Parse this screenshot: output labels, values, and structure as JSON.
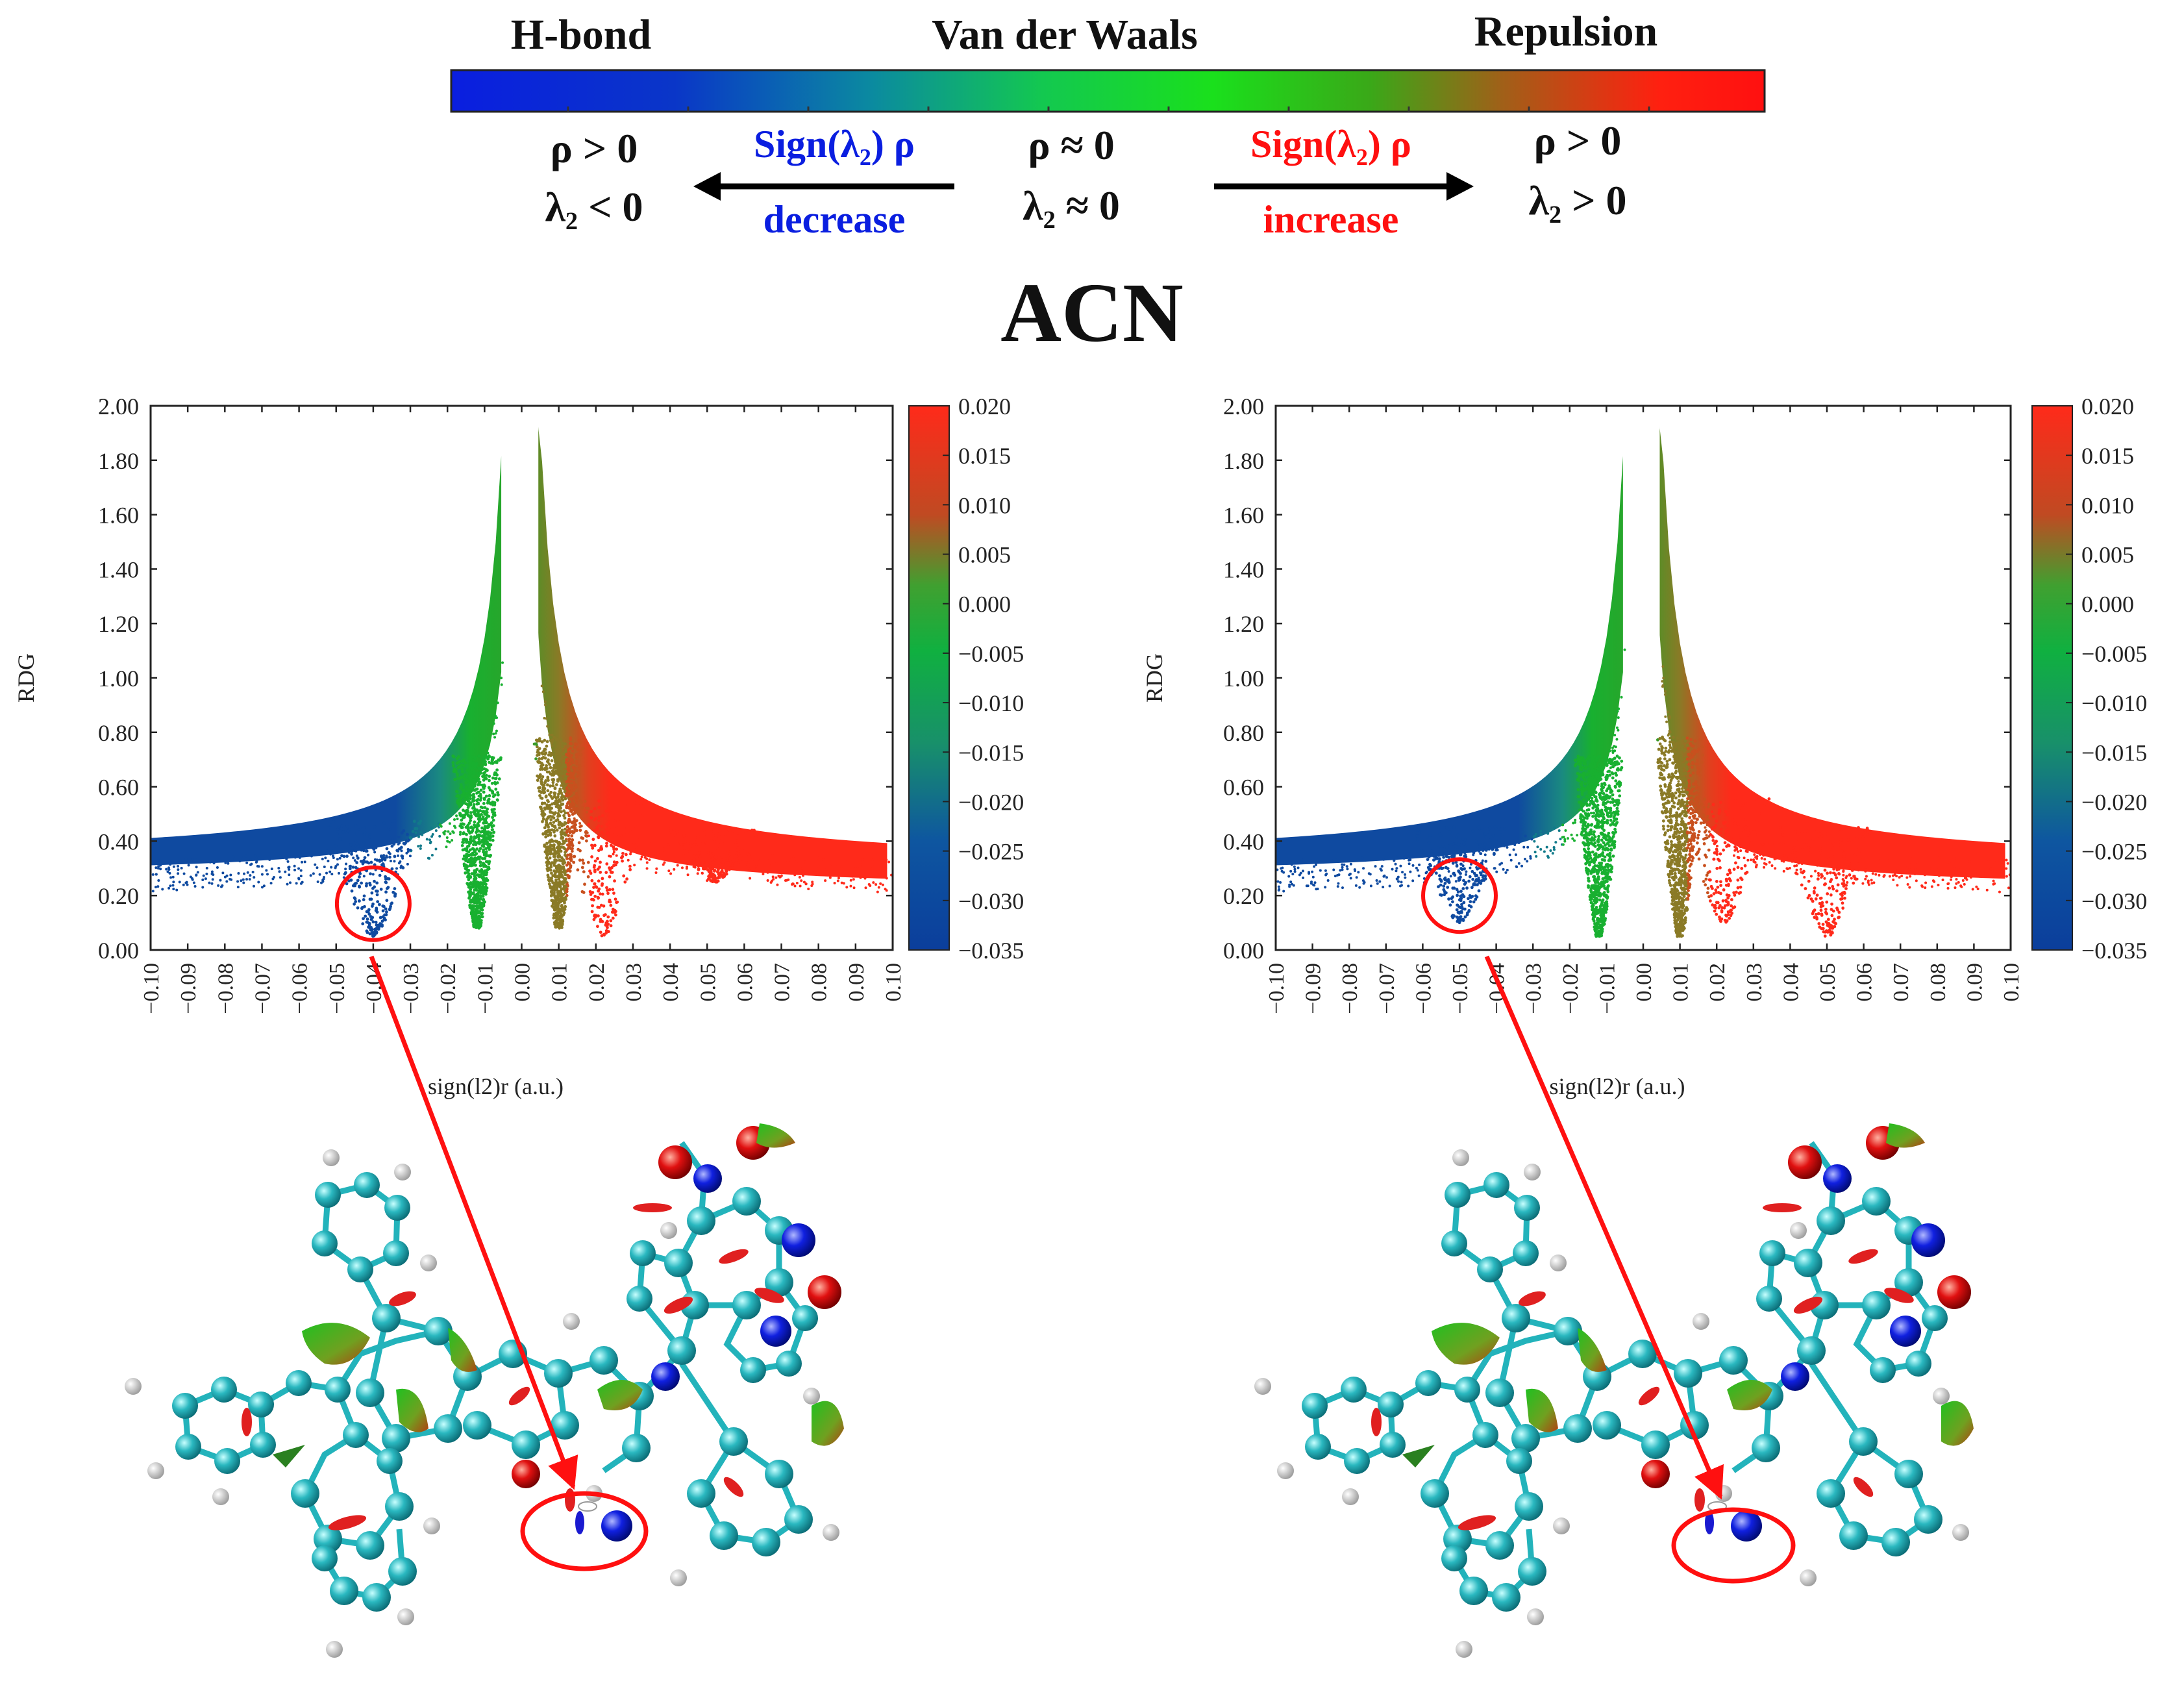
{
  "legend": {
    "labels": {
      "hbond": "H-bond",
      "vdw": "Van der Waals",
      "repulsion": "Repulsion"
    },
    "left_cond": {
      "rho": "ρ > 0",
      "lam": "λ₂ < 0"
    },
    "mid_cond": {
      "rho": "ρ ≈ 0",
      "lam": "λ₂ ≈ 0"
    },
    "right_cond": {
      "rho": "ρ > 0",
      "lam": "λ₂ > 0"
    },
    "left_arrow": {
      "line1": "Sign(λ₂) ρ",
      "line2": "decrease"
    },
    "right_arrow": {
      "line1": "Sign(λ₂) ρ",
      "line2": "increase"
    },
    "colors": {
      "blue": "#0a1ee0",
      "green": "#18d020",
      "red": "#ff1010"
    }
  },
  "main_title": "ACN",
  "chart_data": [
    {
      "type": "scatter",
      "panel": "left",
      "xlabel": "sign(l2)r (a.u.)",
      "ylabel": "RDG",
      "xlim": [
        -0.1,
        0.1
      ],
      "ylim": [
        0.0,
        2.0
      ],
      "xticks": [
        "-0.10",
        "-0.09",
        "-0.08",
        "-0.07",
        "-0.06",
        "-0.05",
        "-0.04",
        "-0.03",
        "-0.02",
        "-0.01",
        "0.00",
        "0.01",
        "0.02",
        "0.03",
        "0.04",
        "0.05",
        "0.06",
        "0.07",
        "0.08",
        "0.09",
        "0.10"
      ],
      "yticks": [
        "0.00",
        "0.20",
        "0.40",
        "0.60",
        "0.80",
        "1.00",
        "1.20",
        "1.40",
        "1.60",
        "1.80",
        "2.00"
      ],
      "colorbar": {
        "min": -0.035,
        "max": 0.02,
        "ticks": [
          "0.020",
          "0.015",
          "0.010",
          "0.005",
          "0.000",
          "-0.005",
          "-0.010",
          "-0.015",
          "-0.020",
          "-0.025",
          "-0.030",
          "-0.035"
        ]
      },
      "highlight": {
        "x": -0.04,
        "y": 0.17
      },
      "spikes": [
        {
          "name": "hbond",
          "x": -0.04,
          "min_rdg": 0.05
        },
        {
          "name": "vdw-left",
          "x": -0.012,
          "min_rdg": 0.08
        },
        {
          "name": "vdw-right",
          "x": 0.01,
          "min_rdg": 0.08
        },
        {
          "name": "steric-1",
          "x": 0.022,
          "min_rdg": 0.05
        },
        {
          "name": "steric-2",
          "x": 0.052,
          "min_rdg": 0.25
        }
      ]
    },
    {
      "type": "scatter",
      "panel": "right",
      "xlabel": "sign(l2)r (a.u.)",
      "ylabel": "RDG",
      "xlim": [
        -0.1,
        0.1
      ],
      "ylim": [
        0.0,
        2.0
      ],
      "xticks": [
        "-0.10",
        "-0.09",
        "-0.08",
        "-0.07",
        "-0.06",
        "-0.05",
        "-0.04",
        "-0.03",
        "-0.02",
        "-0.01",
        "0.00",
        "0.01",
        "0.02",
        "0.03",
        "0.04",
        "0.05",
        "0.06",
        "0.07",
        "0.08",
        "0.09",
        "0.10"
      ],
      "yticks": [
        "0.00",
        "0.20",
        "0.40",
        "0.60",
        "0.80",
        "1.00",
        "1.20",
        "1.40",
        "1.60",
        "1.80",
        "2.00"
      ],
      "colorbar": {
        "min": -0.035,
        "max": 0.02,
        "ticks": [
          "0.020",
          "0.015",
          "0.010",
          "0.005",
          "0.000",
          "-0.005",
          "-0.010",
          "-0.015",
          "-0.020",
          "-0.025",
          "-0.030",
          "-0.035"
        ]
      },
      "highlight": {
        "x": -0.05,
        "y": 0.2
      },
      "spikes": [
        {
          "name": "hbond",
          "x": -0.05,
          "min_rdg": 0.1
        },
        {
          "name": "vdw-left",
          "x": -0.012,
          "min_rdg": 0.05
        },
        {
          "name": "vdw-right",
          "x": 0.01,
          "min_rdg": 0.05
        },
        {
          "name": "steric-1",
          "x": 0.022,
          "min_rdg": 0.1
        },
        {
          "name": "steric-2",
          "x": 0.05,
          "min_rdg": 0.05
        }
      ]
    }
  ]
}
